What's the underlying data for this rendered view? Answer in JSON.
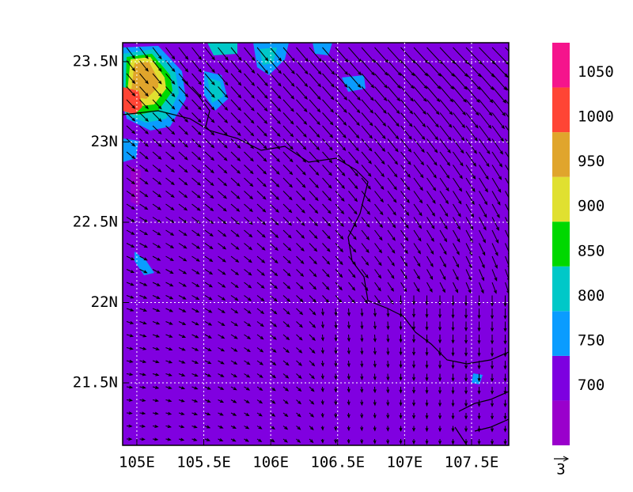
{
  "map": {
    "xlim": [
      104.894,
      107.778
    ],
    "ylim": [
      21.111,
      23.618
    ],
    "xticks": [
      {
        "value": 105,
        "label": "105E"
      },
      {
        "value": 105.5,
        "label": "105.5E"
      },
      {
        "value": 106,
        "label": "106E"
      },
      {
        "value": 106.5,
        "label": "106.5E"
      },
      {
        "value": 107,
        "label": "107E"
      },
      {
        "value": 107.5,
        "label": "107.5E"
      }
    ],
    "yticks": [
      {
        "value": 21.5,
        "label": "21.5N"
      },
      {
        "value": 22,
        "label": "22N"
      },
      {
        "value": 22.5,
        "label": "22.5N"
      },
      {
        "value": 23,
        "label": "23N"
      },
      {
        "value": 23.5,
        "label": "23.5N"
      }
    ],
    "colorbar": {
      "clim": [
        650,
        1100
      ],
      "levels": [
        700,
        750,
        800,
        850,
        900,
        950,
        1000,
        1050
      ],
      "colors": [
        "#9a00cc",
        "#7d00e0",
        "#0a9cff",
        "#00c8c8",
        "#00d800",
        "#e0e030",
        "#e0a52c",
        "#ff4535",
        "#f5148c"
      ]
    },
    "vector_ref": "3"
  }
}
